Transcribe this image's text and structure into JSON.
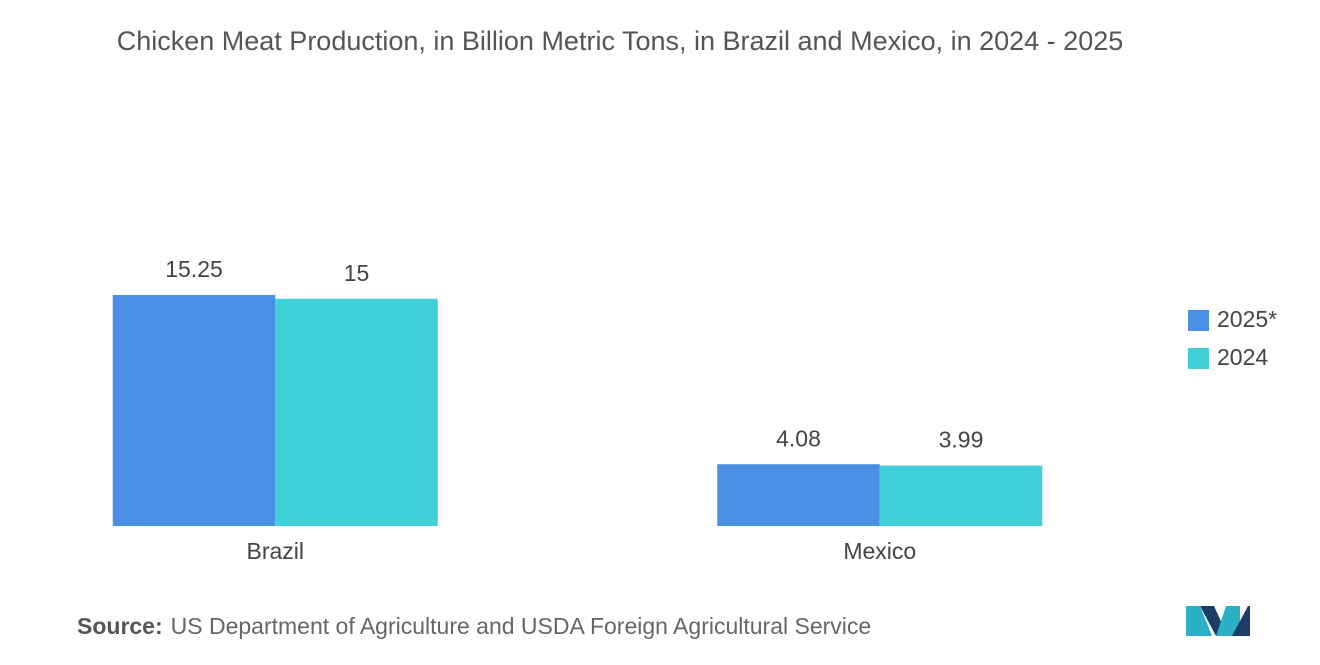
{
  "chart_data": {
    "type": "bar",
    "title": "Chicken Meat Production, in Billion Metric Tons, in Brazil and Mexico, in 2024 - 2025",
    "categories": [
      "Brazil",
      "Mexico"
    ],
    "series": [
      {
        "name": "2025*",
        "color": "#4a8fe3",
        "values": [
          15.25,
          4.08
        ]
      },
      {
        "name": "2024",
        "color": "#40d0da",
        "values": [
          15,
          3.99
        ]
      }
    ],
    "legend": "right",
    "source_label": "Source:",
    "source": "US Department of Agriculture and USDA Foreign Agricultural Service"
  }
}
